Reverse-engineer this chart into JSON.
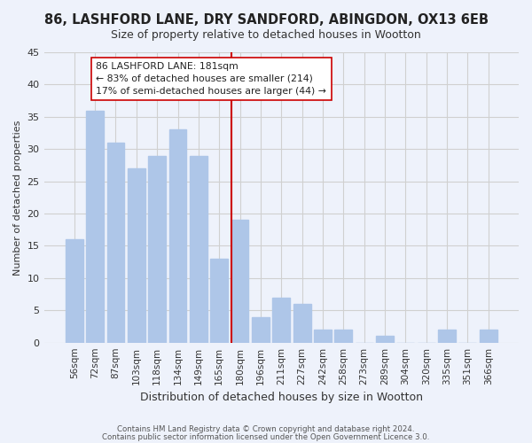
{
  "title": "86, LASHFORD LANE, DRY SANDFORD, ABINGDON, OX13 6EB",
  "subtitle": "Size of property relative to detached houses in Wootton",
  "xlabel": "Distribution of detached houses by size in Wootton",
  "ylabel": "Number of detached properties",
  "bar_labels": [
    "56sqm",
    "72sqm",
    "87sqm",
    "103sqm",
    "118sqm",
    "134sqm",
    "149sqm",
    "165sqm",
    "180sqm",
    "196sqm",
    "211sqm",
    "227sqm",
    "242sqm",
    "258sqm",
    "273sqm",
    "289sqm",
    "304sqm",
    "320sqm",
    "335sqm",
    "351sqm",
    "366sqm"
  ],
  "bar_heights": [
    16,
    36,
    31,
    27,
    29,
    33,
    29,
    13,
    19,
    4,
    7,
    6,
    2,
    2,
    0,
    1,
    0,
    0,
    2,
    0,
    2
  ],
  "bar_color": "#aec6e8",
  "vline_color": "#cc0000",
  "annotation_line1": "86 LASHFORD LANE: 181sqm",
  "annotation_line2": "← 83% of detached houses are smaller (214)",
  "annotation_line3": "17% of semi-detached houses are larger (44) →",
  "annotation_box_color": "#ffffff",
  "annotation_box_edge": "#cc0000",
  "ylim": [
    0,
    45
  ],
  "yticks": [
    0,
    5,
    10,
    15,
    20,
    25,
    30,
    35,
    40,
    45
  ],
  "footer1": "Contains HM Land Registry data © Crown copyright and database right 2024.",
  "footer2": "Contains public sector information licensed under the Open Government Licence 3.0.",
  "grid_color": "#d0d0d0",
  "background_color": "#eef2fb"
}
